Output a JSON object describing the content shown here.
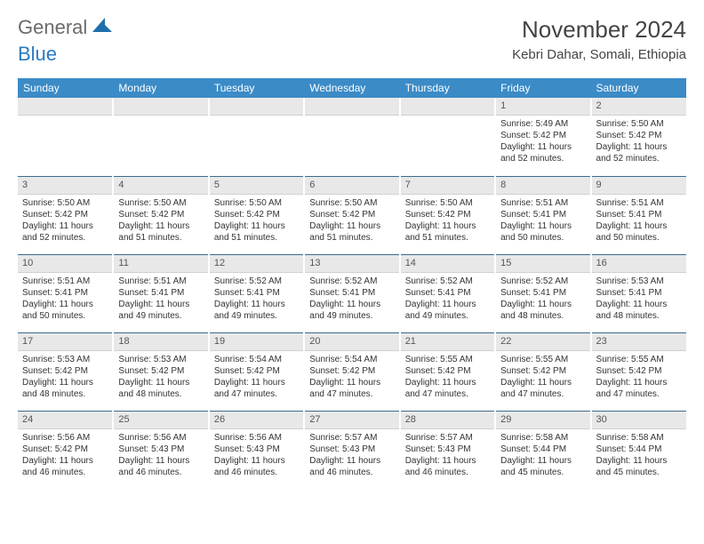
{
  "brand": {
    "word1": "General",
    "word2": "Blue"
  },
  "title": "November 2024",
  "location": "Kebri Dahar, Somali, Ethiopia",
  "colors": {
    "header_bg": "#3b8bc7",
    "header_text": "#ffffff",
    "daynum_bg": "#e8e8e8",
    "row_divider": "#3b6b8f",
    "brand_gray": "#6b6b6b",
    "brand_blue": "#2a7ac0"
  },
  "dayNames": [
    "Sunday",
    "Monday",
    "Tuesday",
    "Wednesday",
    "Thursday",
    "Friday",
    "Saturday"
  ],
  "weeks": [
    [
      {
        "n": "",
        "sr": "",
        "ss": "",
        "dl": ""
      },
      {
        "n": "",
        "sr": "",
        "ss": "",
        "dl": ""
      },
      {
        "n": "",
        "sr": "",
        "ss": "",
        "dl": ""
      },
      {
        "n": "",
        "sr": "",
        "ss": "",
        "dl": ""
      },
      {
        "n": "",
        "sr": "",
        "ss": "",
        "dl": ""
      },
      {
        "n": "1",
        "sr": "Sunrise: 5:49 AM",
        "ss": "Sunset: 5:42 PM",
        "dl": "Daylight: 11 hours and 52 minutes."
      },
      {
        "n": "2",
        "sr": "Sunrise: 5:50 AM",
        "ss": "Sunset: 5:42 PM",
        "dl": "Daylight: 11 hours and 52 minutes."
      }
    ],
    [
      {
        "n": "3",
        "sr": "Sunrise: 5:50 AM",
        "ss": "Sunset: 5:42 PM",
        "dl": "Daylight: 11 hours and 52 minutes."
      },
      {
        "n": "4",
        "sr": "Sunrise: 5:50 AM",
        "ss": "Sunset: 5:42 PM",
        "dl": "Daylight: 11 hours and 51 minutes."
      },
      {
        "n": "5",
        "sr": "Sunrise: 5:50 AM",
        "ss": "Sunset: 5:42 PM",
        "dl": "Daylight: 11 hours and 51 minutes."
      },
      {
        "n": "6",
        "sr": "Sunrise: 5:50 AM",
        "ss": "Sunset: 5:42 PM",
        "dl": "Daylight: 11 hours and 51 minutes."
      },
      {
        "n": "7",
        "sr": "Sunrise: 5:50 AM",
        "ss": "Sunset: 5:42 PM",
        "dl": "Daylight: 11 hours and 51 minutes."
      },
      {
        "n": "8",
        "sr": "Sunrise: 5:51 AM",
        "ss": "Sunset: 5:41 PM",
        "dl": "Daylight: 11 hours and 50 minutes."
      },
      {
        "n": "9",
        "sr": "Sunrise: 5:51 AM",
        "ss": "Sunset: 5:41 PM",
        "dl": "Daylight: 11 hours and 50 minutes."
      }
    ],
    [
      {
        "n": "10",
        "sr": "Sunrise: 5:51 AM",
        "ss": "Sunset: 5:41 PM",
        "dl": "Daylight: 11 hours and 50 minutes."
      },
      {
        "n": "11",
        "sr": "Sunrise: 5:51 AM",
        "ss": "Sunset: 5:41 PM",
        "dl": "Daylight: 11 hours and 49 minutes."
      },
      {
        "n": "12",
        "sr": "Sunrise: 5:52 AM",
        "ss": "Sunset: 5:41 PM",
        "dl": "Daylight: 11 hours and 49 minutes."
      },
      {
        "n": "13",
        "sr": "Sunrise: 5:52 AM",
        "ss": "Sunset: 5:41 PM",
        "dl": "Daylight: 11 hours and 49 minutes."
      },
      {
        "n": "14",
        "sr": "Sunrise: 5:52 AM",
        "ss": "Sunset: 5:41 PM",
        "dl": "Daylight: 11 hours and 49 minutes."
      },
      {
        "n": "15",
        "sr": "Sunrise: 5:52 AM",
        "ss": "Sunset: 5:41 PM",
        "dl": "Daylight: 11 hours and 48 minutes."
      },
      {
        "n": "16",
        "sr": "Sunrise: 5:53 AM",
        "ss": "Sunset: 5:41 PM",
        "dl": "Daylight: 11 hours and 48 minutes."
      }
    ],
    [
      {
        "n": "17",
        "sr": "Sunrise: 5:53 AM",
        "ss": "Sunset: 5:42 PM",
        "dl": "Daylight: 11 hours and 48 minutes."
      },
      {
        "n": "18",
        "sr": "Sunrise: 5:53 AM",
        "ss": "Sunset: 5:42 PM",
        "dl": "Daylight: 11 hours and 48 minutes."
      },
      {
        "n": "19",
        "sr": "Sunrise: 5:54 AM",
        "ss": "Sunset: 5:42 PM",
        "dl": "Daylight: 11 hours and 47 minutes."
      },
      {
        "n": "20",
        "sr": "Sunrise: 5:54 AM",
        "ss": "Sunset: 5:42 PM",
        "dl": "Daylight: 11 hours and 47 minutes."
      },
      {
        "n": "21",
        "sr": "Sunrise: 5:55 AM",
        "ss": "Sunset: 5:42 PM",
        "dl": "Daylight: 11 hours and 47 minutes."
      },
      {
        "n": "22",
        "sr": "Sunrise: 5:55 AM",
        "ss": "Sunset: 5:42 PM",
        "dl": "Daylight: 11 hours and 47 minutes."
      },
      {
        "n": "23",
        "sr": "Sunrise: 5:55 AM",
        "ss": "Sunset: 5:42 PM",
        "dl": "Daylight: 11 hours and 47 minutes."
      }
    ],
    [
      {
        "n": "24",
        "sr": "Sunrise: 5:56 AM",
        "ss": "Sunset: 5:42 PM",
        "dl": "Daylight: 11 hours and 46 minutes."
      },
      {
        "n": "25",
        "sr": "Sunrise: 5:56 AM",
        "ss": "Sunset: 5:43 PM",
        "dl": "Daylight: 11 hours and 46 minutes."
      },
      {
        "n": "26",
        "sr": "Sunrise: 5:56 AM",
        "ss": "Sunset: 5:43 PM",
        "dl": "Daylight: 11 hours and 46 minutes."
      },
      {
        "n": "27",
        "sr": "Sunrise: 5:57 AM",
        "ss": "Sunset: 5:43 PM",
        "dl": "Daylight: 11 hours and 46 minutes."
      },
      {
        "n": "28",
        "sr": "Sunrise: 5:57 AM",
        "ss": "Sunset: 5:43 PM",
        "dl": "Daylight: 11 hours and 46 minutes."
      },
      {
        "n": "29",
        "sr": "Sunrise: 5:58 AM",
        "ss": "Sunset: 5:44 PM",
        "dl": "Daylight: 11 hours and 45 minutes."
      },
      {
        "n": "30",
        "sr": "Sunrise: 5:58 AM",
        "ss": "Sunset: 5:44 PM",
        "dl": "Daylight: 11 hours and 45 minutes."
      }
    ]
  ]
}
